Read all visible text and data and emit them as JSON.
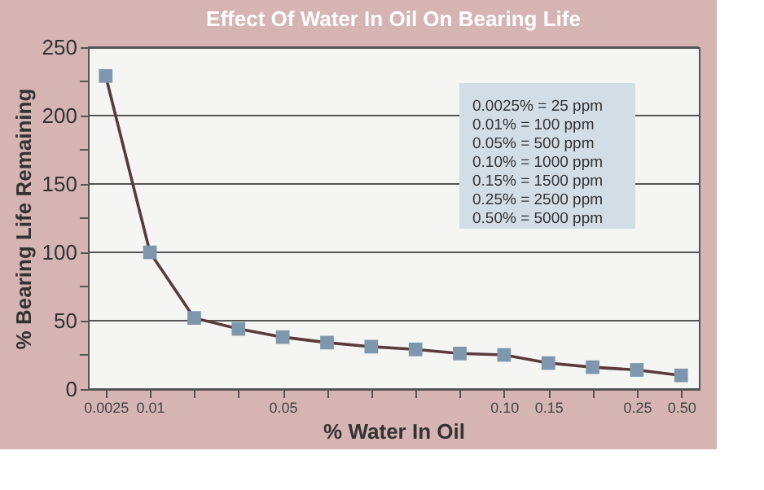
{
  "chart_data": {
    "type": "line",
    "title": "Effect Of Water In Oil On Bearing Life",
    "xlabel": "% Water In Oil",
    "ylabel": "% Bearing Life Remaining",
    "categories": [
      "0.0025",
      "0.01",
      null,
      null,
      "0.05",
      null,
      null,
      null,
      null,
      "0.10",
      "0.15",
      null,
      "0.25",
      "0.50"
    ],
    "series": [
      {
        "color": "#5a3a3a",
        "values": [
          229,
          100,
          52,
          44,
          38,
          34,
          31,
          29,
          26,
          25,
          19,
          16,
          14,
          10
        ]
      }
    ],
    "ylim": [
      0,
      250
    ],
    "yticks": [
      0,
      {
        "value": 25,
        "label": null
      },
      50,
      {
        "value": 75,
        "label": null
      },
      100,
      {
        "value": 125,
        "label": null
      },
      150,
      {
        "value": 175,
        "label": null
      },
      200,
      {
        "value": 225,
        "label": null
      },
      250
    ],
    "grid": "y",
    "marker": "square",
    "line_style": "solid",
    "annotations": [
      "0.0025%  =  25 ppm",
      "0.01%  =  100 ppm",
      "0.05%  =  500 ppm",
      "0.10%  =  1000 ppm",
      "0.15%  =  1500 ppm",
      "0.25%  =  2500 ppm",
      "0.50%  =  5000 ppm"
    ]
  }
}
